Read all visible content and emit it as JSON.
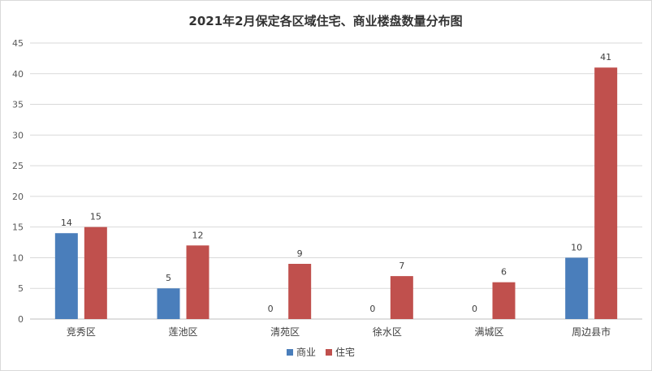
{
  "chart_data": {
    "type": "bar",
    "title": "2021年2月保定各区域住宅、商业楼盘数量分布图",
    "categories": [
      "竞秀区",
      "莲池区",
      "清苑区",
      "徐水区",
      "满城区",
      "周边县市"
    ],
    "series": [
      {
        "name": "商业",
        "values": [
          14,
          5,
          0,
          0,
          0,
          10
        ],
        "color": "#4a7ebb"
      },
      {
        "name": "住宅",
        "values": [
          15,
          12,
          9,
          7,
          6,
          41
        ],
        "color": "#c0504d"
      }
    ],
    "xlabel": "",
    "ylabel": "",
    "ylim": [
      0,
      45
    ],
    "yticks": [
      0,
      5,
      10,
      15,
      20,
      25,
      30,
      35,
      40,
      45
    ],
    "grid": true,
    "legend": "bottom-center"
  }
}
